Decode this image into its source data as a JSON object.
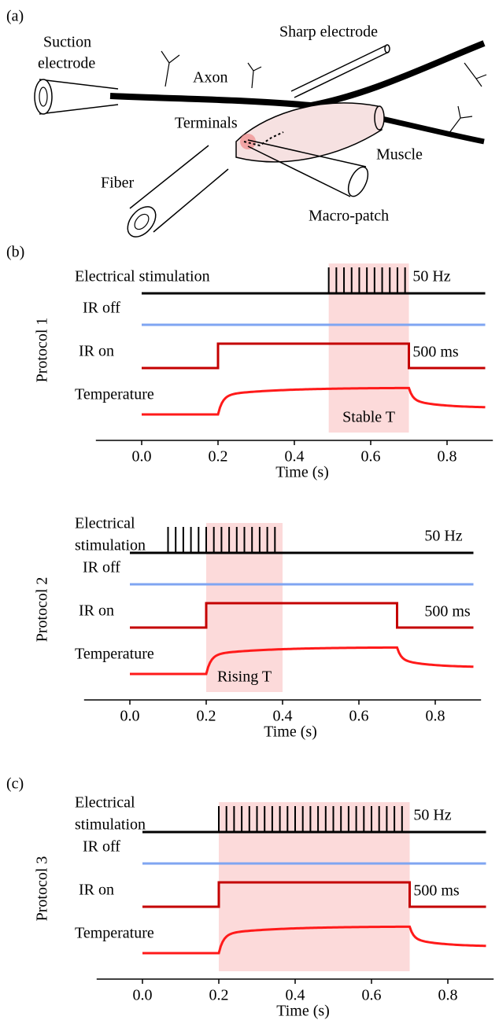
{
  "panel_a": {
    "label": "(a)",
    "suction_electrode": [
      "Suction",
      "electrode"
    ],
    "sharp_electrode": "Sharp electrode",
    "axon": "Axon",
    "terminals": "Terminals",
    "muscle": "Muscle",
    "fiber": "Fiber",
    "macro_patch": "Macro-patch"
  },
  "panel_b_label": "(b)",
  "panel_c_label": "(c)",
  "xlabel": "Time (s)",
  "xlim": [
    -0.12,
    0.92
  ],
  "xticks": [
    {
      "value": 0,
      "label": "0.0"
    },
    0.2,
    0.4,
    0.6,
    0.8
  ],
  "protocols": [
    {
      "name": "Protocol 1",
      "stim_label": [
        "Electrical stimulation"
      ],
      "ir_off_label": "IR off",
      "ir_on_label": "IR on",
      "temperature_label": "Temperature",
      "frequency_label": "50 Hz",
      "frequency": 50,
      "duration_label": "500 ms",
      "trace_range": [
        0,
        0.9
      ],
      "stim": [
        0.49,
        0.69
      ],
      "ir": [
        0.2,
        0.7
      ],
      "shade": [
        0.49,
        0.7
      ],
      "shade_label": "Stable T"
    },
    {
      "name": "Protocol 2",
      "stim_label": [
        "Electrical",
        "stimulation"
      ],
      "ir_off_label": "IR off",
      "ir_on_label": "IR on",
      "temperature_label": "Temperature",
      "frequency_label": "50 Hz",
      "frequency": 50,
      "duration_label": "500 ms",
      "trace_range": [
        0,
        0.9
      ],
      "stim": [
        0.1,
        0.39
      ],
      "ir": [
        0.2,
        0.7
      ],
      "shade": [
        0.2,
        0.4
      ],
      "shade_label": "Rising T"
    },
    {
      "name": "Protocol 3",
      "stim_label": [
        "Electrical",
        "stimulation"
      ],
      "ir_off_label": "IR off",
      "ir_on_label": "IR on",
      "temperature_label": "Temperature",
      "frequency_label": "50 Hz",
      "frequency": 50,
      "duration_label": "500 ms",
      "trace_range": [
        0,
        0.9
      ],
      "stim": [
        0.2,
        0.69
      ],
      "ir": [
        0.2,
        0.7
      ],
      "shade": [
        0.2,
        0.7
      ]
    }
  ]
}
